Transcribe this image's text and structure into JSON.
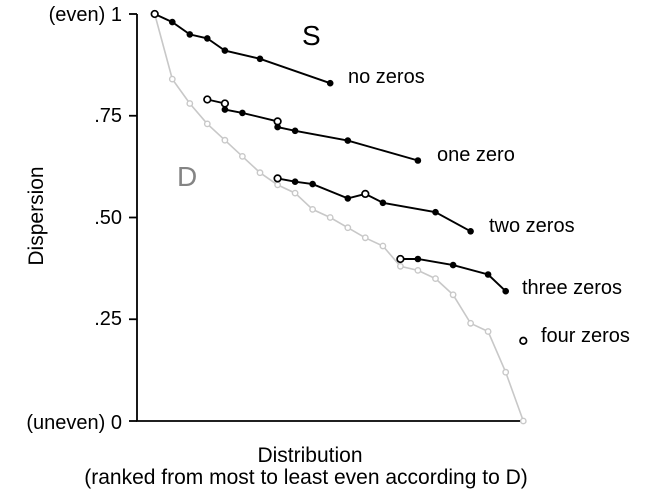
{
  "chart_data": {
    "type": "line",
    "title": "",
    "ylabel": "Dispersion",
    "xlabel": "Distribution",
    "xlabel_note": "(ranked from most to least even according to D)",
    "y_axis": {
      "min": 0,
      "max": 1,
      "ticks": [
        {
          "value": 1,
          "label": "(even) 1"
        },
        {
          "value": 0.75,
          "label": ".75"
        },
        {
          "value": 0.5,
          "label": ".50"
        },
        {
          "value": 0.25,
          "label": ".25"
        },
        {
          "value": 0,
          "label": "(uneven) 0"
        }
      ]
    },
    "x_axis": {
      "unit": "distribution rank",
      "min": 1,
      "max": 22,
      "tick_labels_shown": false
    },
    "grid": false,
    "legend_position": "inline-right-of-curves",
    "colors": {
      "s_curves": "#000000",
      "d_curve": "#c8c8c8",
      "d_annotation": "#848484",
      "background": "#ffffff"
    },
    "annotations": [
      {
        "text": "S",
        "color": "#000000"
      },
      {
        "text": "D",
        "color": "#848484"
      }
    ],
    "series": [
      {
        "name": "D",
        "label": "",
        "color": "#c8c8c8",
        "points": [
          {
            "rank": 1,
            "value": 1.0,
            "marker": "open"
          },
          {
            "rank": 2,
            "value": 0.84,
            "marker": "open"
          },
          {
            "rank": 3,
            "value": 0.78,
            "marker": "open"
          },
          {
            "rank": 4,
            "value": 0.73,
            "marker": "open"
          },
          {
            "rank": 5,
            "value": 0.69,
            "marker": "open"
          },
          {
            "rank": 6,
            "value": 0.65,
            "marker": "open"
          },
          {
            "rank": 7,
            "value": 0.61,
            "marker": "open"
          },
          {
            "rank": 8,
            "value": 0.58,
            "marker": "open"
          },
          {
            "rank": 9,
            "value": 0.56,
            "marker": "open"
          },
          {
            "rank": 10,
            "value": 0.52,
            "marker": "open"
          },
          {
            "rank": 11,
            "value": 0.5,
            "marker": "open"
          },
          {
            "rank": 12,
            "value": 0.475,
            "marker": "open"
          },
          {
            "rank": 13,
            "value": 0.45,
            "marker": "open"
          },
          {
            "rank": 14,
            "value": 0.43,
            "marker": "open"
          },
          {
            "rank": 15,
            "value": 0.38,
            "marker": "open"
          },
          {
            "rank": 16,
            "value": 0.37,
            "marker": "open"
          },
          {
            "rank": 17,
            "value": 0.35,
            "marker": "open"
          },
          {
            "rank": 18,
            "value": 0.31,
            "marker": "open"
          },
          {
            "rank": 19,
            "value": 0.24,
            "marker": "open"
          },
          {
            "rank": 20,
            "value": 0.22,
            "marker": "open"
          },
          {
            "rank": 21,
            "value": 0.12,
            "marker": "open"
          },
          {
            "rank": 22,
            "value": 0.0,
            "marker": "open"
          }
        ]
      },
      {
        "name": "no zeros",
        "label": "no zeros",
        "color": "#000000",
        "points": [
          {
            "rank": 1,
            "value": 1.0,
            "marker": "open"
          },
          {
            "rank": 2,
            "value": 0.98,
            "marker": "filled"
          },
          {
            "rank": 3,
            "value": 0.95,
            "marker": "filled"
          },
          {
            "rank": 4,
            "value": 0.94,
            "marker": "filled"
          },
          {
            "rank": 5,
            "value": 0.91,
            "marker": "filled"
          },
          {
            "rank": 7,
            "value": 0.89,
            "marker": "filled"
          },
          {
            "rank": 11,
            "value": 0.83,
            "marker": "filled"
          }
        ]
      },
      {
        "name": "one zero",
        "label": "one zero",
        "color": "#000000",
        "points": [
          {
            "rank": 4,
            "value": 0.79,
            "marker": "open"
          },
          {
            "rank": 5,
            "value": 0.78,
            "marker": "open"
          },
          {
            "rank": 5,
            "value": 0.765,
            "marker": "filled"
          },
          {
            "rank": 6,
            "value": 0.757,
            "marker": "filled"
          },
          {
            "rank": 8,
            "value": 0.736,
            "marker": "open"
          },
          {
            "rank": 8,
            "value": 0.722,
            "marker": "filled"
          },
          {
            "rank": 9,
            "value": 0.713,
            "marker": "filled"
          },
          {
            "rank": 12,
            "value": 0.689,
            "marker": "filled"
          },
          {
            "rank": 16,
            "value": 0.64,
            "marker": "filled"
          }
        ]
      },
      {
        "name": "two zeros",
        "label": "two zeros",
        "color": "#000000",
        "points": [
          {
            "rank": 8,
            "value": 0.596,
            "marker": "open"
          },
          {
            "rank": 9,
            "value": 0.588,
            "marker": "filled"
          },
          {
            "rank": 10,
            "value": 0.582,
            "marker": "filled"
          },
          {
            "rank": 12,
            "value": 0.547,
            "marker": "filled"
          },
          {
            "rank": 13,
            "value": 0.558,
            "marker": "open"
          },
          {
            "rank": 14,
            "value": 0.536,
            "marker": "filled"
          },
          {
            "rank": 17,
            "value": 0.513,
            "marker": "filled"
          },
          {
            "rank": 19,
            "value": 0.466,
            "marker": "filled"
          }
        ]
      },
      {
        "name": "three zeros",
        "label": "three zeros",
        "color": "#000000",
        "points": [
          {
            "rank": 15,
            "value": 0.398,
            "marker": "open"
          },
          {
            "rank": 16,
            "value": 0.398,
            "marker": "filled"
          },
          {
            "rank": 18,
            "value": 0.383,
            "marker": "filled"
          },
          {
            "rank": 20,
            "value": 0.36,
            "marker": "filled"
          },
          {
            "rank": 21,
            "value": 0.319,
            "marker": "filled"
          }
        ]
      },
      {
        "name": "four zeros",
        "label": "four zeros",
        "color": "#000000",
        "points": [
          {
            "rank": 22,
            "value": 0.197,
            "marker": "open"
          }
        ]
      }
    ]
  }
}
